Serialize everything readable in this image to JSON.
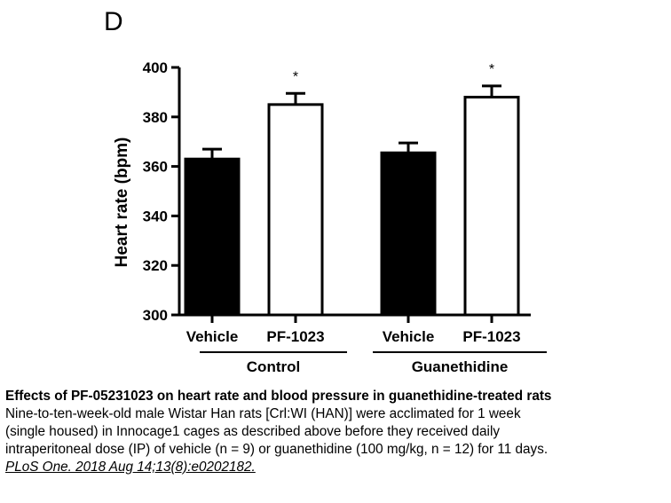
{
  "panel_label": "D",
  "chart_data": {
    "type": "bar",
    "title": "",
    "xlabel": "",
    "ylabel": "Heart rate (bpm)",
    "ylim": [
      300,
      400
    ],
    "yticks": [
      300,
      320,
      340,
      360,
      380,
      400
    ],
    "grid": false,
    "categories": [
      "Vehicle",
      "PF-1023",
      "Vehicle",
      "PF-1023"
    ],
    "groups": [
      {
        "label": "Control",
        "members": [
          0,
          1
        ]
      },
      {
        "label": "Guanethidine",
        "members": [
          2,
          3
        ]
      }
    ],
    "series": [
      {
        "name": "Heart rate",
        "values": [
          363,
          385,
          365.5,
          388
        ],
        "errors": [
          4,
          4.5,
          4,
          4.5
        ],
        "fills": [
          "filled",
          "open",
          "filled",
          "open"
        ],
        "significance": [
          "",
          "*",
          "",
          "*"
        ]
      }
    ],
    "colors": {
      "filled": "#000000",
      "open": "#ffffff",
      "stroke": "#000000"
    }
  },
  "caption": {
    "title": "Effects of PF-05231023 on heart rate and blood pressure in guanethidine-treated rats",
    "lines": [
      "Nine-to-ten-week-old male Wistar Han rats [Crl:WI (HAN)] were acclimated for 1 week",
      "(single housed) in Innocage1 cages as described above before they received daily",
      "intraperitoneal dose (IP) of vehicle (n = 9) or guanethidine (100 mg/kg, n = 12) for 11 days."
    ],
    "citation": "PLoS One. 2018 Aug 14;13(8):e0202182."
  }
}
